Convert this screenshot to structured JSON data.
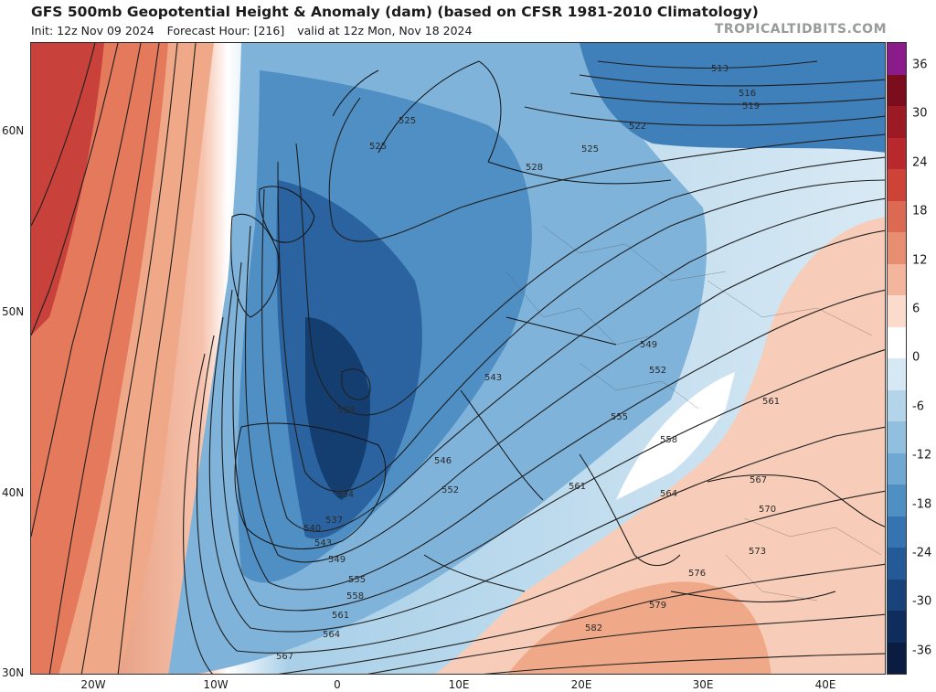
{
  "header": {
    "title": "GFS 500mb Geopotential Height & Anomaly (dam) (based on CFSR 1981-2010 Climatology)",
    "init": "Init: 12z Nov 09 2024",
    "forecast_hour": "Forecast Hour: [216]",
    "valid": "valid at 12z Mon, Nov 18 2024",
    "brand": "TROPICALTIDBITS.COM"
  },
  "axes": {
    "lat_labels": [
      "60N",
      "50N",
      "40N",
      "30N"
    ],
    "lon_labels": [
      "20W",
      "10W",
      "0",
      "10E",
      "20E",
      "30E",
      "40E"
    ]
  },
  "colorbar": {
    "labels": [
      "36",
      "30",
      "24",
      "18",
      "12",
      "6",
      "0",
      "-6",
      "-12",
      "-18",
      "-24",
      "-30",
      "-36"
    ],
    "colors": [
      "#8b1a8b",
      "#7a0c1c",
      "#9c1a24",
      "#b8282c",
      "#cd4436",
      "#dc6a52",
      "#e88e70",
      "#f3b59b",
      "#fbdccc",
      "#ffffff",
      "#d6e8f4",
      "#b4d4ea",
      "#91bfdf",
      "#6ea8d3",
      "#4e8fc4",
      "#3574b0",
      "#235a97",
      "#18427a",
      "#0f2d5c",
      "#0a1c40"
    ]
  },
  "contour_labels": [
    "513",
    "516",
    "519",
    "522",
    "525",
    "525",
    "525",
    "528",
    "528",
    "534",
    "537",
    "540",
    "543",
    "543",
    "546",
    "549",
    "549",
    "552",
    "552",
    "555",
    "555",
    "558",
    "558",
    "561",
    "561",
    "561",
    "564",
    "564",
    "567",
    "567",
    "570",
    "573",
    "576",
    "579",
    "582"
  ]
}
